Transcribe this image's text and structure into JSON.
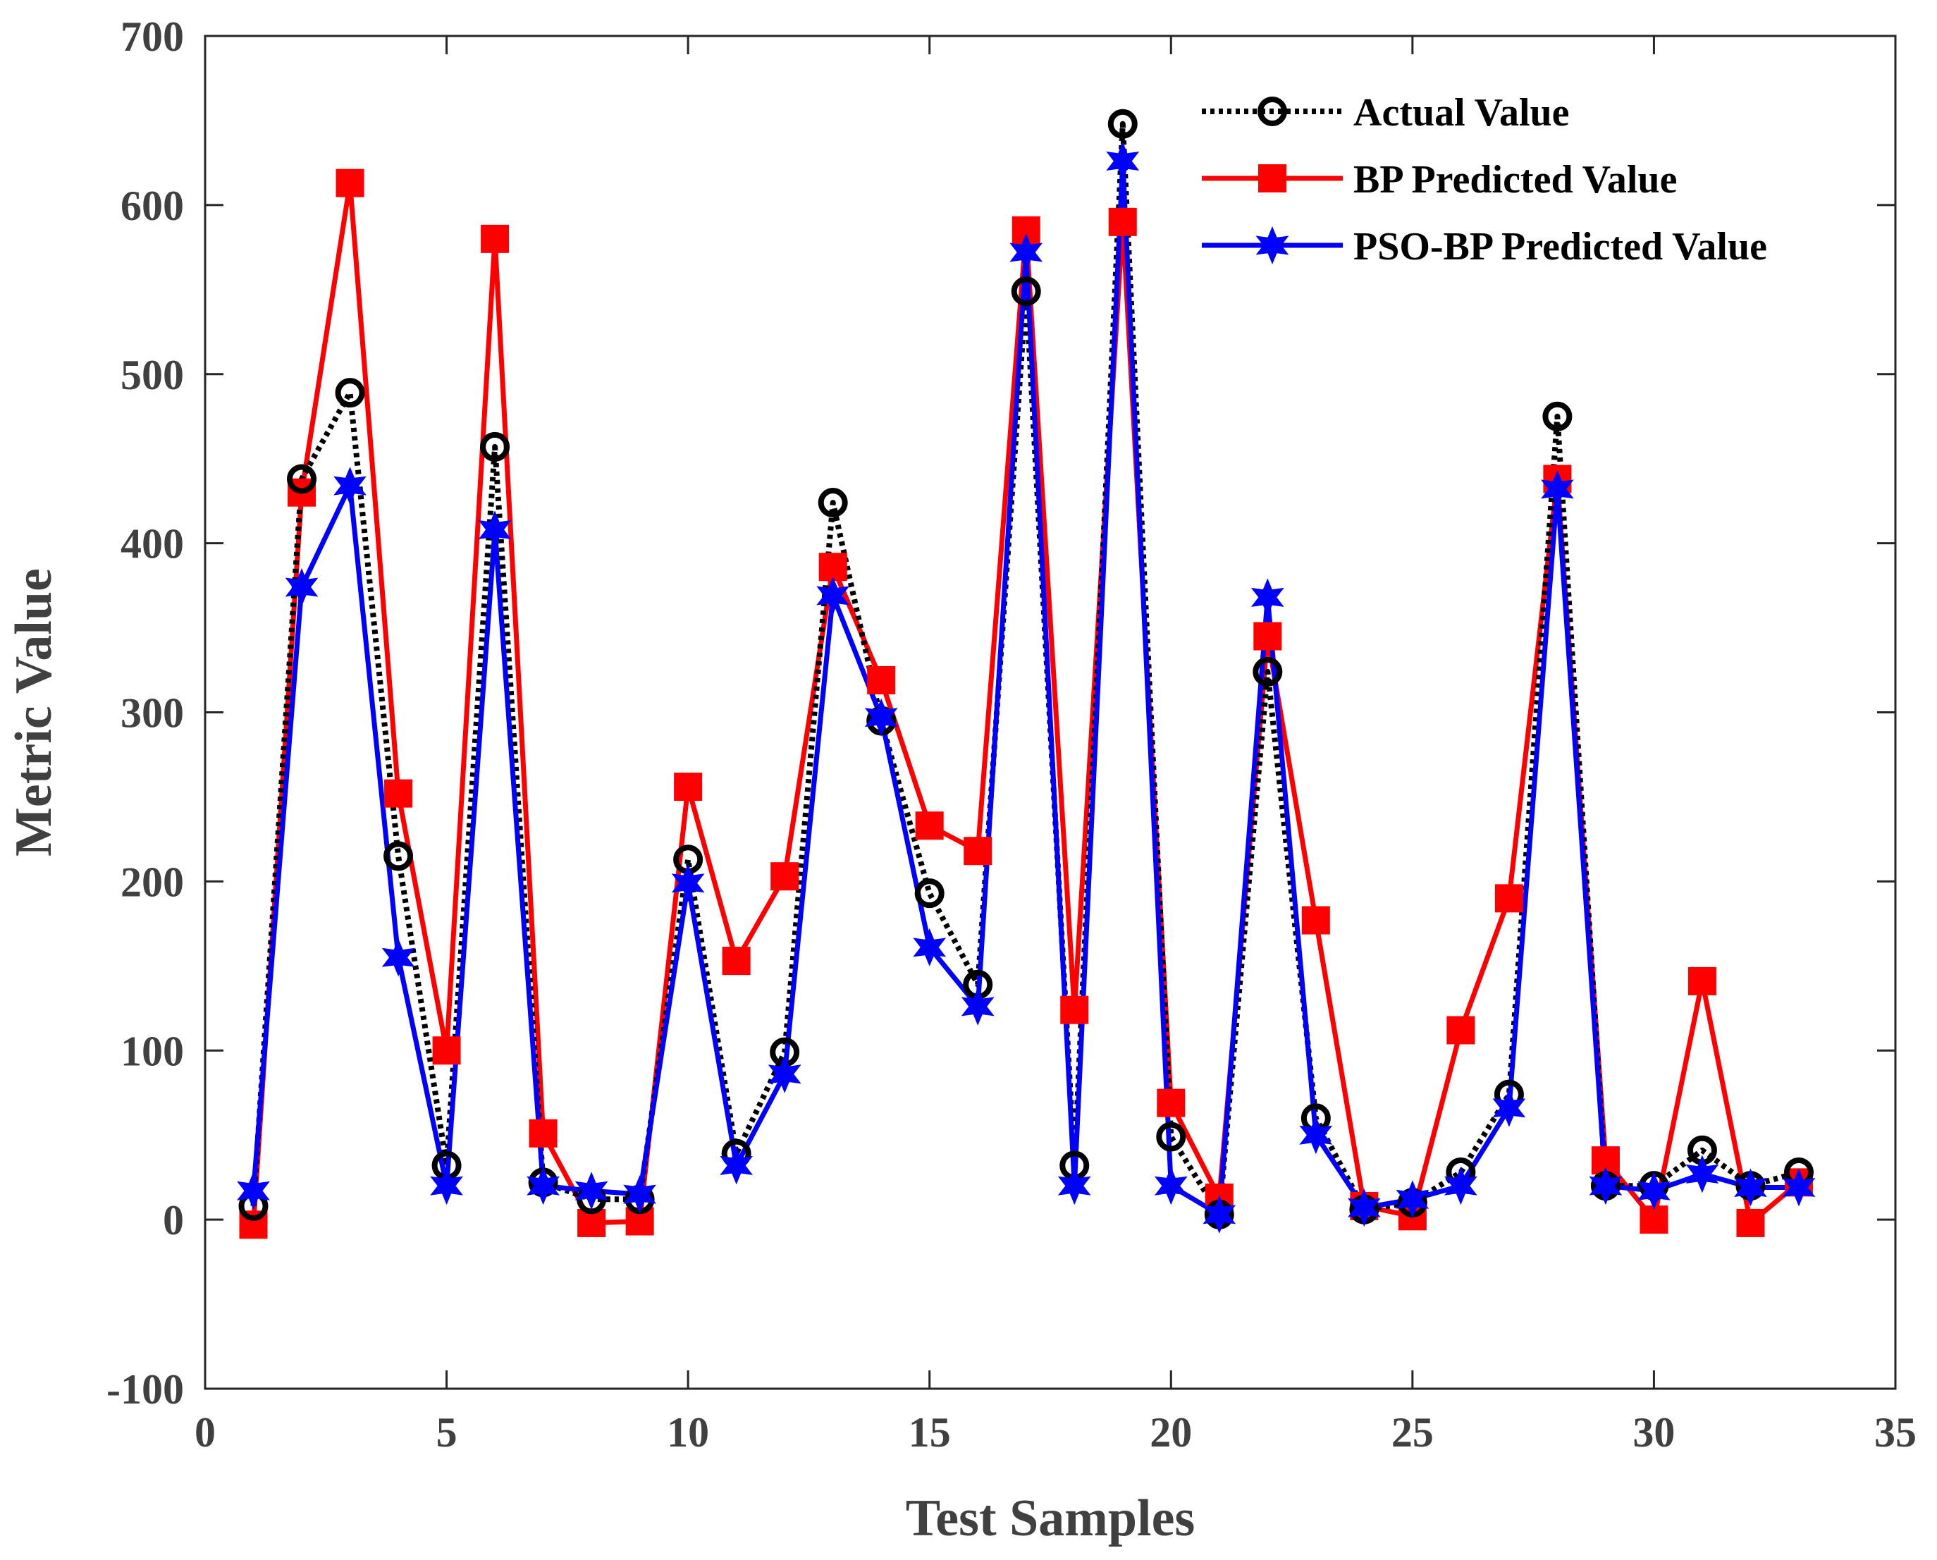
{
  "chart_data": {
    "type": "line",
    "title": "",
    "xlabel": "Test Samples",
    "ylabel": "Metric Value",
    "xlim": [
      0,
      35
    ],
    "ylim": [
      -100,
      700
    ],
    "xticks": [
      0,
      5,
      10,
      15,
      20,
      25,
      30,
      35
    ],
    "yticks": [
      -100,
      0,
      100,
      200,
      300,
      400,
      500,
      600,
      700
    ],
    "grid": false,
    "legend_position": "top-right",
    "x": [
      1,
      2,
      3,
      4,
      5,
      6,
      7,
      8,
      9,
      10,
      11,
      12,
      13,
      14,
      15,
      16,
      17,
      18,
      19,
      20,
      21,
      22,
      23,
      24,
      25,
      26,
      27,
      28,
      29,
      30,
      31,
      32,
      33
    ],
    "series": [
      {
        "name": "Actual Value",
        "color": "#000000",
        "line_style": "dotted",
        "marker": "circle",
        "values": [
          8,
          438,
          489,
          215,
          32,
          457,
          22,
          12,
          12,
          213,
          39,
          99,
          424,
          295,
          193,
          139,
          549,
          32,
          648,
          49,
          3,
          324,
          60,
          6,
          10,
          28,
          74,
          475,
          20,
          20,
          41,
          20,
          28
        ]
      },
      {
        "name": "BP Predicted Value",
        "color": "#ff0000",
        "line_style": "solid",
        "marker": "square",
        "values": [
          -3,
          430,
          613,
          252,
          100,
          580,
          51,
          -2,
          -1,
          256,
          153,
          203,
          386,
          319,
          233,
          218,
          585,
          124,
          590,
          69,
          13,
          345,
          177,
          8,
          2,
          112,
          190,
          438,
          35,
          0,
          141,
          -2,
          22
        ]
      },
      {
        "name": "PSO-BP Predicted Value",
        "color": "#0000ff",
        "line_style": "solid",
        "marker": "star",
        "values": [
          17,
          374,
          434,
          155,
          20,
          408,
          20,
          17,
          15,
          199,
          32,
          86,
          369,
          297,
          161,
          126,
          572,
          20,
          626,
          20,
          3,
          368,
          50,
          7,
          12,
          20,
          66,
          432,
          20,
          17,
          27,
          19,
          19
        ]
      }
    ]
  }
}
